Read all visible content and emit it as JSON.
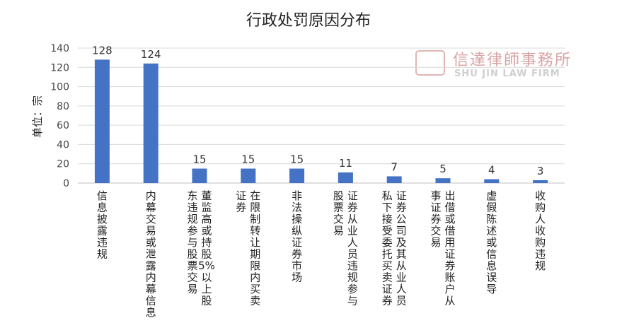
{
  "chart_data": {
    "type": "bar",
    "title": "行政处罚原因分布",
    "ylabel": "单位：宗",
    "xlabel": "",
    "ylim": [
      0,
      140
    ],
    "yticks": [
      0,
      20,
      40,
      60,
      80,
      100,
      120,
      140
    ],
    "grid": true,
    "bar_color": "#4472C4",
    "categories": [
      "信息披露违规",
      "内幕交易或泄露内幕信息",
      "董监高或持股5%以上股东违规参与股票交易",
      "在限制转让期限内买卖证券",
      "非法操纵证券市场",
      "证券从业人员违规参与股票交易",
      "证券公司及其从业人员私下接受委托买卖证券",
      "出借或借用证券账户从事证券交易",
      "虚假陈述或信息误导",
      "收购人收购违规"
    ],
    "category_lines": [
      [
        "信息披露违规"
      ],
      [
        "内幕交易或泄露内幕信息"
      ],
      [
        "董监高或持股5%以上股",
        "东违规参与股票交易"
      ],
      [
        "在限制转让期限内买卖",
        "证券"
      ],
      [
        "非法操纵证券市场"
      ],
      [
        "证券从业人员违规参与",
        "股票交易"
      ],
      [
        "证券公司及其从业人员",
        "私下接受委托买卖证券"
      ],
      [
        "出借或借用证券账户从",
        "事证券交易"
      ],
      [
        "虚假陈述或信息误导"
      ],
      [
        "收购人收购违规"
      ]
    ],
    "values": [
      128,
      124,
      15,
      15,
      15,
      11,
      7,
      5,
      4,
      3
    ]
  },
  "watermark": {
    "chinese": "信達律師事務所",
    "english": "SHU JIN LAW FIRM"
  }
}
